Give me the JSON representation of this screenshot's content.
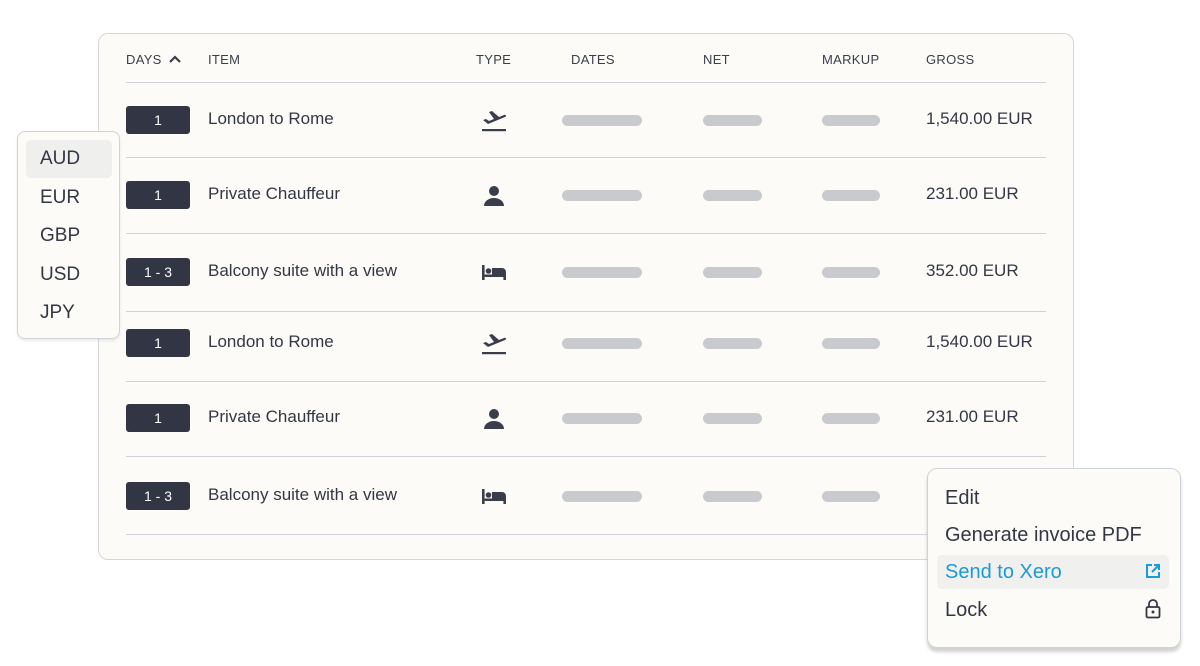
{
  "table": {
    "headers": {
      "days": "DAYS",
      "item": "ITEM",
      "type": "TYPE",
      "dates": "DATES",
      "net": "NET",
      "markup": "MARKUP",
      "gross": "GROSS"
    },
    "sort": {
      "column": "days",
      "direction": "ascending",
      "icon": "chevron-up-icon"
    },
    "rows": [
      {
        "days": "1",
        "item": "London to Rome",
        "type": "flight-departure-icon",
        "gross": "1,540.00 EUR"
      },
      {
        "days": "1",
        "item": "Private Chauffeur",
        "type": "person-icon",
        "gross": "231.00 EUR"
      },
      {
        "days": "1 - 3",
        "item": "Balcony suite with a view",
        "type": "bed-icon",
        "gross": "352.00 EUR"
      },
      {
        "days": "1",
        "item": "London to Rome",
        "type": "flight-departure-icon",
        "gross": "1,540.00 EUR"
      },
      {
        "days": "1",
        "item": "Private Chauffeur",
        "type": "person-icon",
        "gross": "231.00 EUR"
      },
      {
        "days": "1 - 3",
        "item": "Balcony suite with a view",
        "type": "bed-icon",
        "gross": ""
      }
    ]
  },
  "currency_dropdown": {
    "options": [
      "AUD",
      "EUR",
      "GBP",
      "USD",
      "JPY"
    ],
    "highlighted": "AUD"
  },
  "context_menu": {
    "items": [
      {
        "label": "Edit"
      },
      {
        "label": "Generate invoice PDF"
      },
      {
        "label": "Send to Xero",
        "icon": "external-link-icon",
        "highlighted": true
      },
      {
        "label": "Lock",
        "icon": "lock-open-icon"
      }
    ]
  },
  "colors": {
    "accent": "#1a9ad6",
    "badge": "#323644",
    "background": "#fcfbf7",
    "placeholder": "#c9cacd"
  }
}
